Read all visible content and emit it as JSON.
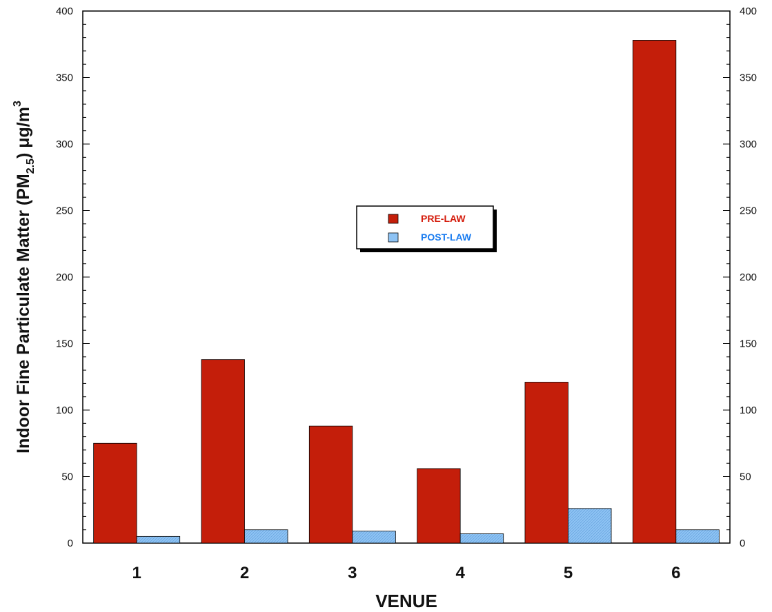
{
  "chart_data": {
    "type": "bar",
    "categories": [
      "1",
      "2",
      "3",
      "4",
      "5",
      "6"
    ],
    "series": [
      {
        "name": "PRE-LAW",
        "values": [
          75,
          138,
          88,
          56,
          121,
          378
        ],
        "color": "#c41e0a"
      },
      {
        "name": "POST-LAW",
        "values": [
          5,
          10,
          9,
          7,
          26,
          10
        ],
        "color": "#8ec3f4"
      }
    ],
    "xlabel": "VENUE",
    "ylabel": {
      "prefix": "Indoor Fine Particulate Matter (PM",
      "subscript": "2.5",
      "suffix": ") μg/m",
      "superscript": "3"
    },
    "ylim": [
      0,
      400
    ],
    "yticks": [
      "0",
      "50",
      "100",
      "150",
      "200",
      "250",
      "300",
      "350",
      "400"
    ],
    "right_axis": true,
    "grid": false,
    "legend_position": "center",
    "legend_colors": {
      "PRE-LAW": "#d41a0a",
      "POST-LAW": "#1a7cf0"
    }
  }
}
